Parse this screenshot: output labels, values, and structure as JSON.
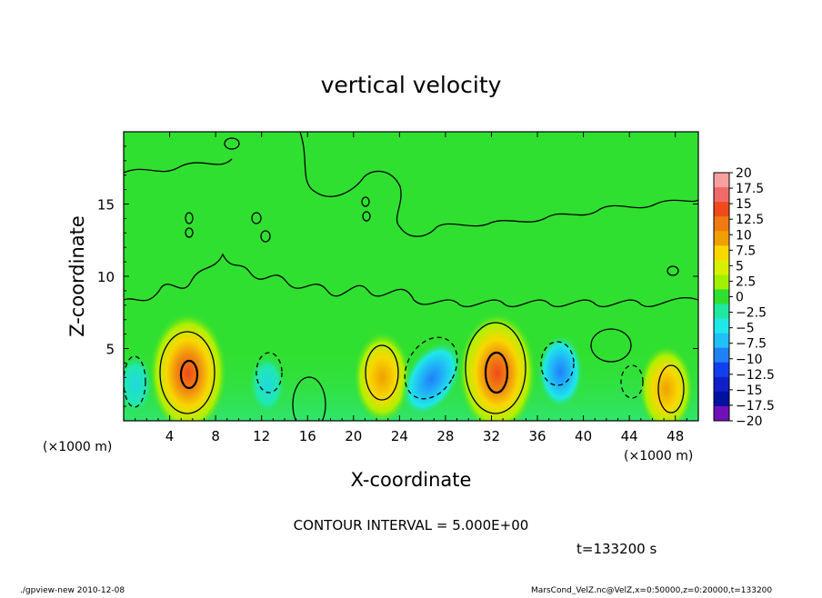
{
  "chart_data": {
    "type": "heatmap",
    "title": "vertical velocity",
    "xlabel": "X-coordinate",
    "ylabel": "Z-coordinate",
    "x_unit_left": "(×1000 m)",
    "x_unit_right": "(×1000 m)",
    "xlim": [
      0,
      50
    ],
    "ylim": [
      0,
      20
    ],
    "x_ticks": [
      "4",
      "8",
      "12",
      "16",
      "20",
      "24",
      "28",
      "32",
      "36",
      "40",
      "44",
      "48"
    ],
    "x_tick_values": [
      4,
      8,
      12,
      16,
      20,
      24,
      28,
      32,
      36,
      40,
      44,
      48
    ],
    "y_ticks": [
      "5",
      "10",
      "15"
    ],
    "y_tick_values": [
      5,
      10,
      15
    ],
    "contour_interval_text": "CONTOUR INTERVAL = 5.000E+00",
    "time_text": "t=133200 s",
    "colorbar": {
      "labels": [
        "20",
        "17.5",
        "15",
        "12.5",
        "10",
        "7.5",
        "5",
        "2.5",
        "0",
        "-2.5",
        "-5",
        "-7.5",
        "-10",
        "-12.5",
        "-15",
        "-17.5",
        "-20"
      ],
      "colors": [
        "#f7a0a0",
        "#f06a6a",
        "#f04a1a",
        "#f07a10",
        "#f0a000",
        "#f8d800",
        "#d8f000",
        "#a0f000",
        "#30e030",
        "#20e8a0",
        "#20e8e8",
        "#20c0f8",
        "#2080f8",
        "#1040f0",
        "#1020c8",
        "#0010a0",
        "#7010b8"
      ]
    },
    "features": [
      {
        "kind": "updraft",
        "x": 5.6,
        "z": 3.3,
        "peak": 17
      },
      {
        "kind": "updraft",
        "x": 22.5,
        "z": 3.0,
        "peak": 10
      },
      {
        "kind": "updraft",
        "x": 32.5,
        "z": 3.3,
        "peak": 17
      },
      {
        "kind": "updraft",
        "x": 47.2,
        "z": 2.2,
        "peak": 9
      },
      {
        "kind": "downdraft",
        "x": 26.8,
        "z": 2.9,
        "peak": -8
      },
      {
        "kind": "downdraft",
        "x": 38.0,
        "z": 3.4,
        "peak": -6
      },
      {
        "kind": "downdraft",
        "x": 12.5,
        "z": 2.5,
        "peak": -3
      },
      {
        "kind": "downdraft",
        "x": 1.0,
        "z": 2.5,
        "peak": -3
      }
    ],
    "grid": false
  },
  "footer": {
    "left": "./gpview-new   2010-12-08",
    "right": "MarsCond_VelZ.nc@VelZ,x=0:50000,z=0:20000,t=133200"
  }
}
